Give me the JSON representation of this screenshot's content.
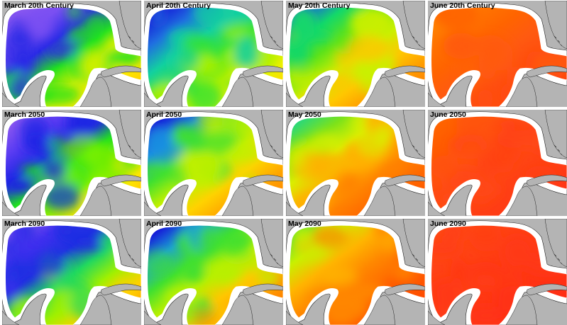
{
  "panels": [
    {
      "title": "March 20th Century",
      "month": "March",
      "period": "20th Century",
      "palette": [
        "#8a57f0",
        "#7a4ff2",
        "#2a2ae6",
        "#1fe21f",
        "#d8f000",
        "#ffe600",
        "#ffc400"
      ],
      "warmth": 0.12
    },
    {
      "title": "April 20th Century",
      "month": "April",
      "period": "20th Century",
      "palette": [
        "#1616d8",
        "#1f6fe0",
        "#13d0a0",
        "#34e234",
        "#a8f000",
        "#eff000",
        "#ffd300"
      ],
      "warmth": 0.3
    },
    {
      "title": "May 20th Century",
      "month": "May",
      "period": "20th Century",
      "palette": [
        "#1e55e8",
        "#13d86a",
        "#5ce21a",
        "#c9f000",
        "#ffc700",
        "#ff9a00",
        "#ff7a00"
      ],
      "warmth": 0.55
    },
    {
      "title": "June 20th Century",
      "month": "June",
      "period": "20th Century",
      "palette": [
        "#ff8a00",
        "#ff7300",
        "#ff6400",
        "#ff5a10",
        "#ff4d10",
        "#ff4a10",
        "#ff3f10"
      ],
      "warmth": 0.85
    },
    {
      "title": "March 2050",
      "month": "March",
      "period": "2050",
      "palette": [
        "#8a57f0",
        "#5a3cf2",
        "#1f25e4",
        "#20e020",
        "#7ef000",
        "#ffe600",
        "#ffb400"
      ],
      "warmth": 0.18
    },
    {
      "title": "April 2050",
      "month": "April",
      "period": "2050",
      "palette": [
        "#1616d8",
        "#1a8fe0",
        "#40e030",
        "#c0f000",
        "#ffd200",
        "#ffa200",
        "#ff8200"
      ],
      "warmth": 0.42
    },
    {
      "title": "May 2050",
      "month": "May",
      "period": "2050",
      "palette": [
        "#2ad87a",
        "#7ce21a",
        "#d8f000",
        "#ffb000",
        "#ff8200",
        "#ff6600",
        "#ff5500"
      ],
      "warmth": 0.7
    },
    {
      "title": "June 2050",
      "month": "June",
      "period": "2050",
      "palette": [
        "#ff6400",
        "#ff5a00",
        "#ff5010",
        "#ff4814",
        "#ff4014",
        "#ff3a14",
        "#ff3214"
      ],
      "warmth": 0.92
    },
    {
      "title": "March 2090",
      "month": "March",
      "period": "2090",
      "palette": [
        "#8a57f0",
        "#3f30ee",
        "#1f2ee2",
        "#20d860",
        "#a0f000",
        "#ffd000",
        "#ff9a00"
      ],
      "warmth": 0.24
    },
    {
      "title": "April 2090",
      "month": "April",
      "period": "2090",
      "palette": [
        "#1616d8",
        "#1aa0d8",
        "#40e030",
        "#b8f000",
        "#ffc600",
        "#ff9600",
        "#ff7800"
      ],
      "warmth": 0.48
    },
    {
      "title": "May 2090",
      "month": "May",
      "period": "2090",
      "palette": [
        "#46e040",
        "#c8f000",
        "#ffb400",
        "#ff8800",
        "#ff6a00",
        "#ff5400",
        "#ff4400"
      ],
      "warmth": 0.78
    },
    {
      "title": "June 2090",
      "month": "June",
      "period": "2090",
      "palette": [
        "#ff4a10",
        "#ff4414",
        "#ff3e14",
        "#ff3814",
        "#ff3414",
        "#ff3014",
        "#ff2c14"
      ],
      "warmth": 0.97
    }
  ],
  "colors": {
    "land": "#b4b4b4",
    "coast_band": "#ffffff",
    "outline": "#222222"
  }
}
